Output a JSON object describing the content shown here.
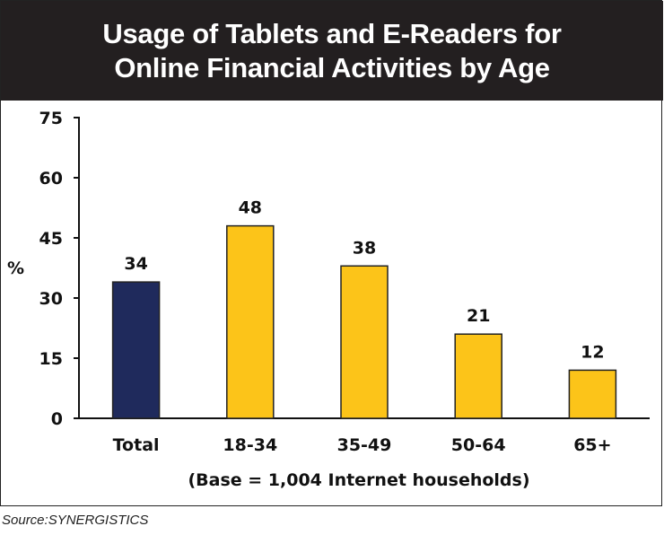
{
  "chart_data": {
    "type": "bar",
    "title_lines": [
      "Usage of Tablets and E-Readers for",
      "Online Financial Activities by Age"
    ],
    "categories": [
      "Total",
      "18-34",
      "35-49",
      "50-64",
      "65+"
    ],
    "values": [
      34,
      48,
      38,
      21,
      12
    ],
    "bar_colors": [
      "#1f2a5c",
      "#fcc419",
      "#fcc419",
      "#fcc419",
      "#fcc419"
    ],
    "ylabel": "%",
    "ylim": [
      0,
      75
    ],
    "yticks": [
      "0",
      "15",
      "30",
      "45",
      "60",
      "75"
    ],
    "note": "(Base = 1,004 Internet households)",
    "grid": false,
    "legend": "none"
  },
  "source": "Source:SYNERGISTICS"
}
